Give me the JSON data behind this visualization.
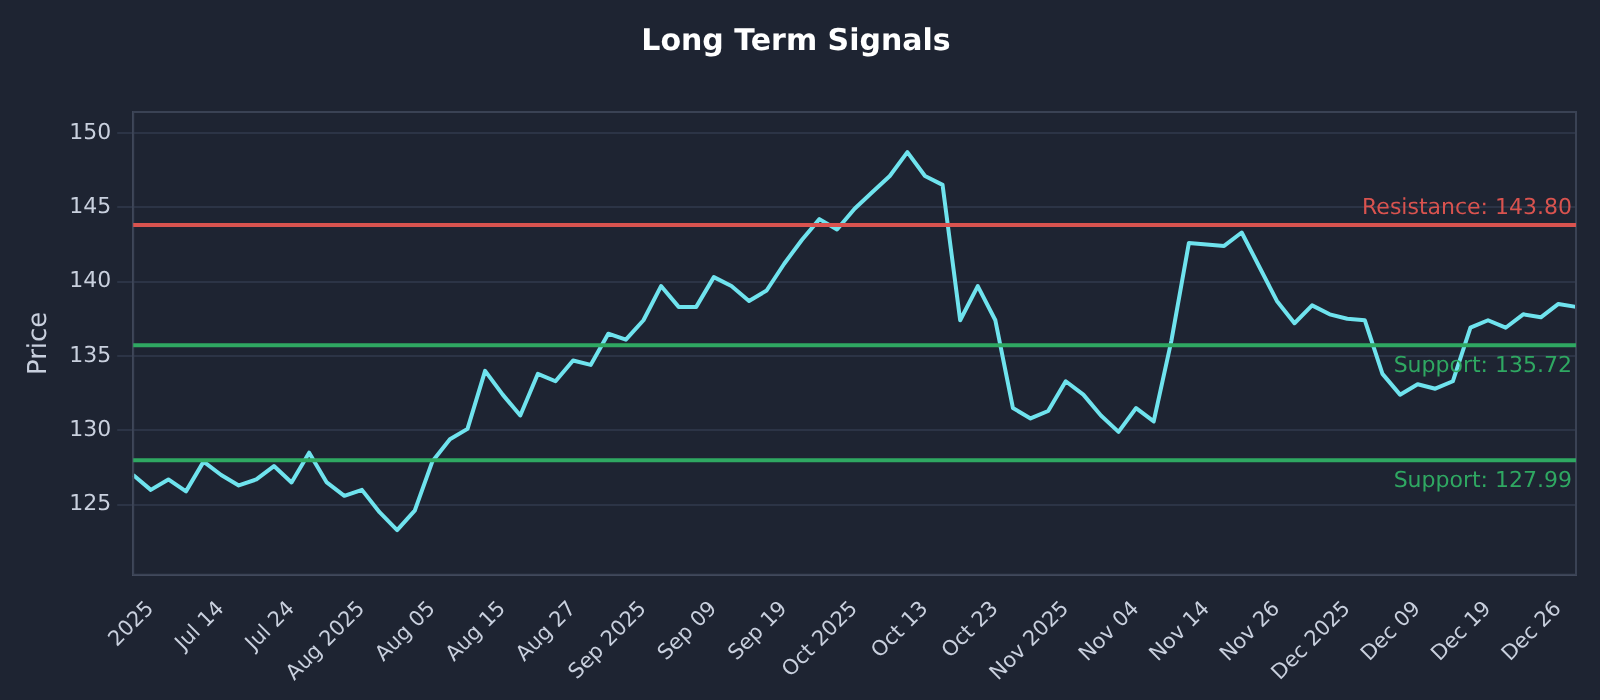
{
  "chart_data": {
    "type": "line",
    "title": "Long Term Signals",
    "ylabel": "Price",
    "categories": [
      null,
      "2025",
      null,
      null,
      null,
      "Jul 14",
      null,
      null,
      null,
      "Jul 24",
      null,
      null,
      null,
      "Aug 2025",
      null,
      null,
      null,
      "Aug 05",
      null,
      null,
      null,
      "Aug 15",
      null,
      null,
      null,
      "Aug 27",
      null,
      null,
      null,
      "Sep 2025",
      null,
      null,
      null,
      "Sep 09",
      null,
      null,
      null,
      "Sep 19",
      null,
      null,
      null,
      "Oct 2025",
      null,
      null,
      null,
      "Oct 13",
      null,
      null,
      null,
      "Oct 23",
      null,
      null,
      null,
      "Nov 2025",
      null,
      null,
      null,
      "Nov 04",
      null,
      null,
      null,
      "Nov 14",
      null,
      null,
      null,
      "Nov 26",
      null,
      null,
      null,
      "Dec 2025",
      null,
      null,
      null,
      "Dec 09",
      null,
      null,
      null,
      "Dec 19",
      null,
      null,
      null,
      "Dec 26",
      null
    ],
    "series": [
      {
        "color": "#6fe3ee",
        "values": [
          127.0,
          126.0,
          126.7,
          125.9,
          127.9,
          127.0,
          126.3,
          126.7,
          127.6,
          126.5,
          128.5,
          126.5,
          125.6,
          126.0,
          124.5,
          123.3,
          124.6,
          127.9,
          129.4,
          130.1,
          134.0,
          132.4,
          131.0,
          133.8,
          133.3,
          134.7,
          134.4,
          136.5,
          136.1,
          137.4,
          139.7,
          138.3,
          138.3,
          140.3,
          139.7,
          138.7,
          139.4,
          141.2,
          142.8,
          144.2,
          143.5,
          144.9,
          146.0,
          147.1,
          148.7,
          147.1,
          146.5,
          137.4,
          139.7,
          137.4,
          131.5,
          130.8,
          131.3,
          133.3,
          132.4,
          131.0,
          129.9,
          131.5,
          130.6,
          136.0,
          142.6,
          142.5,
          142.4,
          143.3,
          141.0,
          138.7,
          137.2,
          138.4,
          137.8,
          137.5,
          137.4,
          133.8,
          132.4,
          133.1,
          132.8,
          133.3,
          136.9,
          137.4,
          136.9,
          137.8,
          137.6,
          138.5,
          138.3
        ]
      }
    ],
    "ylim": [
      120.3,
      151.4
    ],
    "yticks": [
      125,
      130,
      135,
      140,
      145,
      150
    ],
    "grid": "y",
    "legend": false,
    "marker": "none",
    "line_style": "solid",
    "ref_lines": [
      {
        "axis": "y",
        "value": 143.8,
        "label": "Resistance: 143.80",
        "color": "#d9534f"
      },
      {
        "axis": "y",
        "value": 135.72,
        "label": "Support: 135.72",
        "color": "#2fa862"
      },
      {
        "axis": "y",
        "value": 127.99,
        "label": "Support: 127.99",
        "color": "#2fa862"
      }
    ]
  }
}
